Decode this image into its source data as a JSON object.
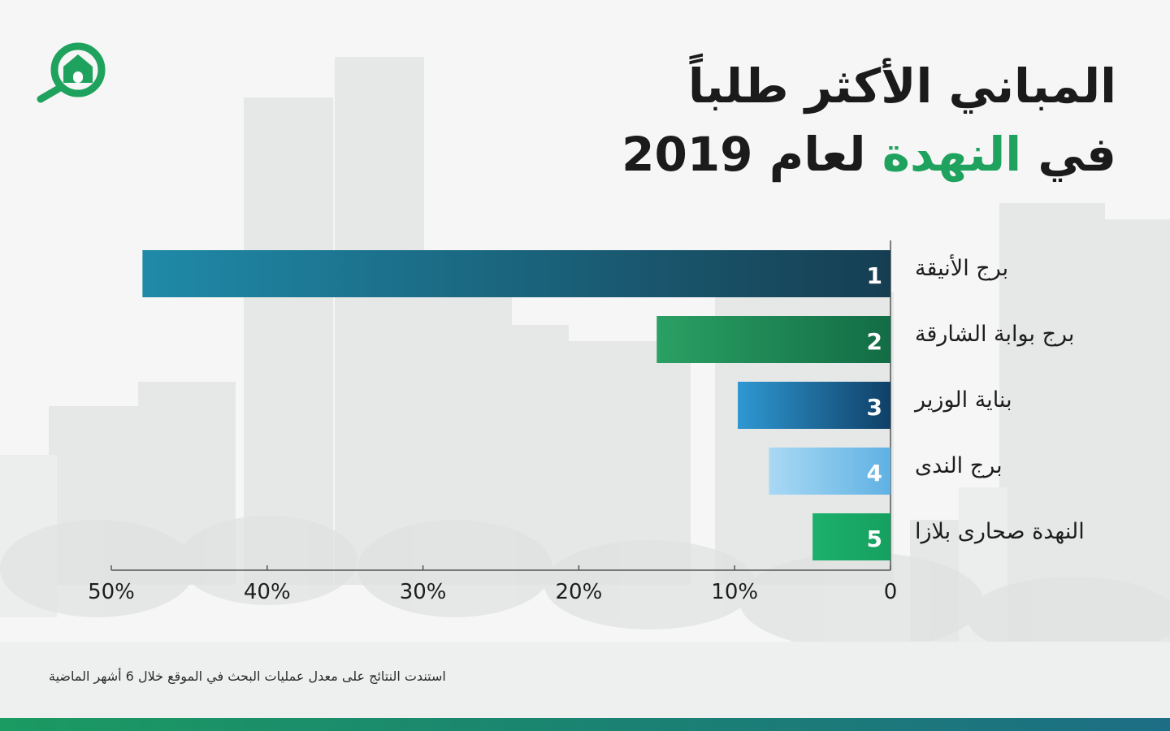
{
  "title": {
    "line1": "المباني الأكثر طلباً",
    "line2_prefix": "في",
    "line2_accent": "النهدة",
    "line2_suffix": "لعام 2019"
  },
  "footnote": "استندت النتائج على معدل عمليات البحث في الموقع خلال 6 أشهر الماضية",
  "logo": {
    "icon": "house-magnifier-icon",
    "color": "#1fa25d"
  },
  "colors": {
    "accent": "#1fa25d",
    "bar1": [
      "#1f8aa8",
      "#163e52"
    ],
    "bar2": [
      "#2aa064",
      "#136c45"
    ],
    "bar3": [
      "#2f98d2",
      "#0f4067"
    ],
    "bar4": [
      "#a9d9f4",
      "#5fb1e3"
    ],
    "bar5": [
      "#1bb06c",
      "#16a05f"
    ]
  },
  "chart_data": {
    "type": "bar",
    "orientation": "horizontal",
    "direction": "right-to-left",
    "categories": [
      "برج الأنيقة",
      "برج بوابة الشارقة",
      "بناية الوزير",
      "برج الندى",
      "النهدة صحارى بلازا"
    ],
    "ranks": [
      "1",
      "2",
      "3",
      "4",
      "5"
    ],
    "values": [
      48,
      15,
      9.8,
      7.8,
      5
    ],
    "xlim": [
      0,
      50
    ],
    "ticks": [
      0,
      10,
      20,
      30,
      40,
      50
    ],
    "tick_labels": [
      "0",
      "10%",
      "20%",
      "30%",
      "40%",
      "50%"
    ],
    "grid": false,
    "legend": "none"
  }
}
